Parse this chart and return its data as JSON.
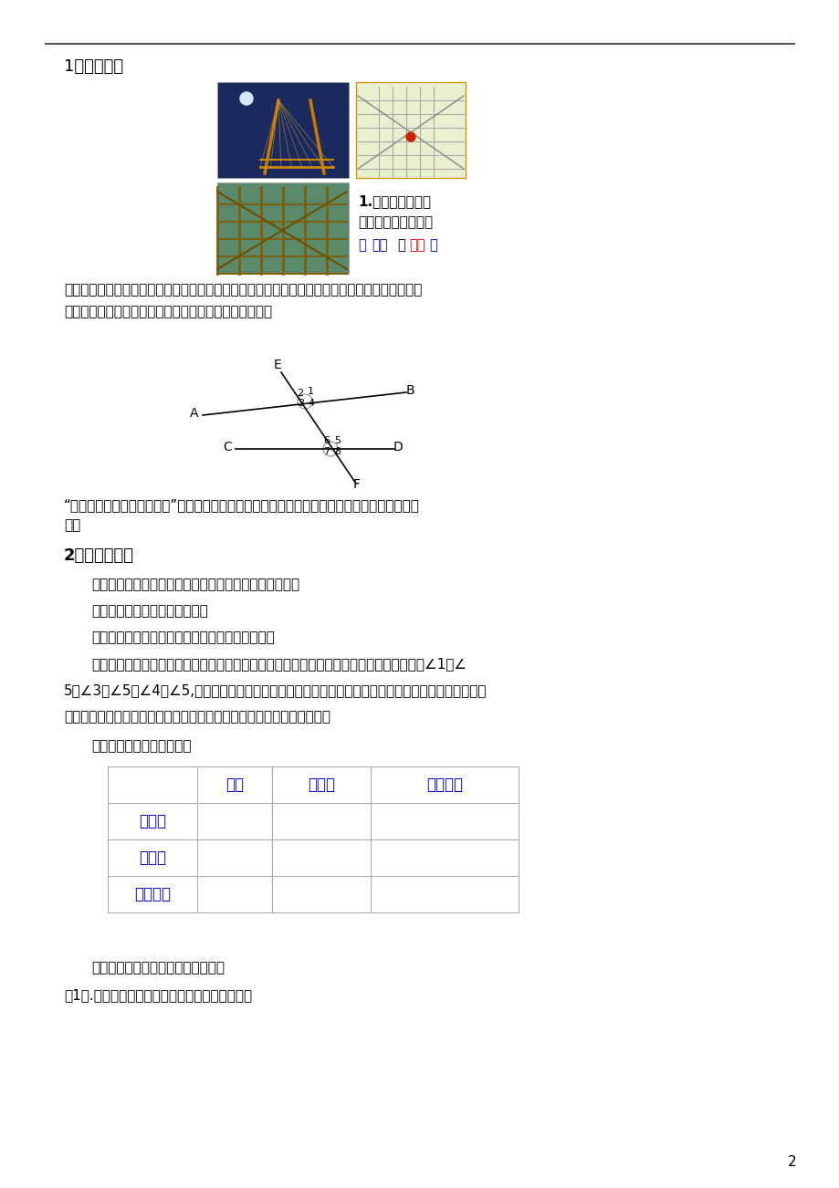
{
  "bg_color": "#ffffff",
  "page_num": "2",
  "section1_title": "1、复习导入",
  "section2_title": "2、自主学习：",
  "text_color": "#000000",
  "blue_color": "#0000cc",
  "red_color": "#cc0000",
  "table_header": [
    "",
    "截线",
    "被截线",
    "结构特征"
  ],
  "table_rows": [
    "同位角",
    "内错角",
    "同旁内角"
  ],
  "paragraph1": "师出示跨海大桥、交通地图等图片，让学生仔细观察，并思考平面上两条直线有哪两种位置关系，",
  "paragraph1b": "学生会回答相交或平行，由具体的图片抽象出几何图形：",
  "quote_text": "“两条直线被第三条直线所截”教师向学生灌输第三条直线是联系前两条直线的纽带，起着桥梁作",
  "quote_text2": "用。",
  "self_study_q1": "观察图中两条直线被第三条直线所截，能形成多少个角？",
  "self_study_q2": "思考这些角的位置关系有哪些？",
  "self_study_q3": "学生会发现对顶角，然后再观察其他的位置关系。",
  "self_study_q4": "此时教师指明其中两个角（依据学习内容顺序，同位角、内错角、同旁内角指明的角依次是∠1与∠",
  "self_study_q4b": "5，∠3与∠5，∠4与∠5,），让学生来总结位置关系，找出有着类似的位置关系的角，并为这样的一类角",
  "self_study_q4c": "起名字，发现他们的图形类似哪些字母，并用手指指出形状，加深记忆。",
  "summary_intro": "在学完三个角后，完成总结",
  "exercise_intro": "总结完后完成下列习题，巩固基础。",
  "exercise1": "（1）.识别哪些角是同位角、内错角、同旁内角。",
  "question_text1": "1.平面上两条直线",
  "question_text2": "有哪两种位置关系？",
  "question_answer_pre": "（",
  "question_answer_ping": "平行",
  "question_answer_mid": "和",
  "question_answer_xiang": "相交",
  "question_answer_post": "）"
}
